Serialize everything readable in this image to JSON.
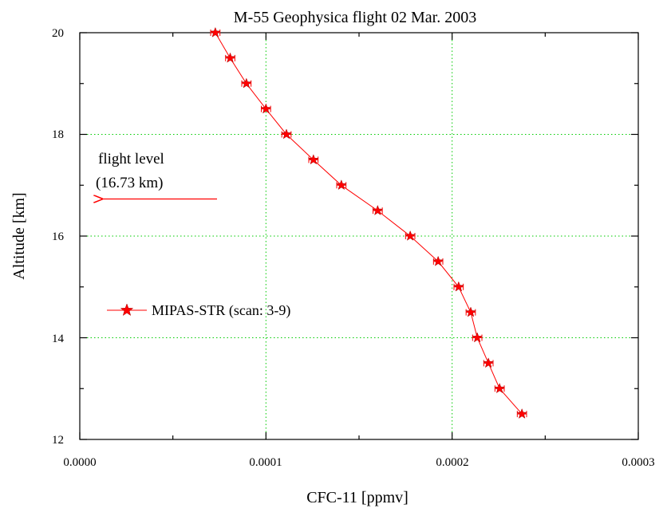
{
  "chart_data": {
    "type": "line",
    "title": "M-55 Geophysica flight 02 Mar. 2003",
    "xlabel": "CFC-11 [ppmv]",
    "ylabel": "Altitude [km]",
    "xlim": [
      0,
      0.0003
    ],
    "ylim": [
      12,
      20
    ],
    "xticks": [
      "0.0000",
      "0.0001",
      "0.0002",
      "0.0003"
    ],
    "yticks": [
      "12",
      "14",
      "16",
      "18",
      "20"
    ],
    "grid": true,
    "legend_position": "middle-left",
    "series": [
      {
        "name": "MIPAS-STR (scan: 3-9)",
        "color": "#ff0000",
        "marker": "star",
        "x": [
          7.28e-05,
          8.08e-05,
          8.95e-05,
          0.0001,
          0.000111,
          0.0001255,
          0.0001405,
          0.00016,
          0.0001775,
          0.0001925,
          0.0002035,
          0.00021,
          0.0002135,
          0.0002195,
          0.0002255,
          0.0002375
        ],
        "y": [
          20.0,
          19.5,
          19.0,
          18.5,
          18.0,
          17.5,
          17.0,
          16.5,
          16.0,
          15.5,
          15.0,
          14.5,
          14.0,
          13.5,
          13.0,
          12.5
        ],
        "xerr": [
          2.5e-06,
          2.5e-06,
          2.5e-06,
          2.5e-06,
          2.5e-06,
          2.5e-06,
          2.5e-06,
          2.5e-06,
          2.5e-06,
          2.5e-06,
          2.5e-06,
          2.5e-06,
          2.5e-06,
          2.5e-06,
          2.5e-06,
          2.5e-06
        ]
      }
    ],
    "annotations": {
      "flight_level_line1": "flight level",
      "flight_level_line2": "(16.73 km)",
      "flight_level_altitude": 16.73
    }
  }
}
